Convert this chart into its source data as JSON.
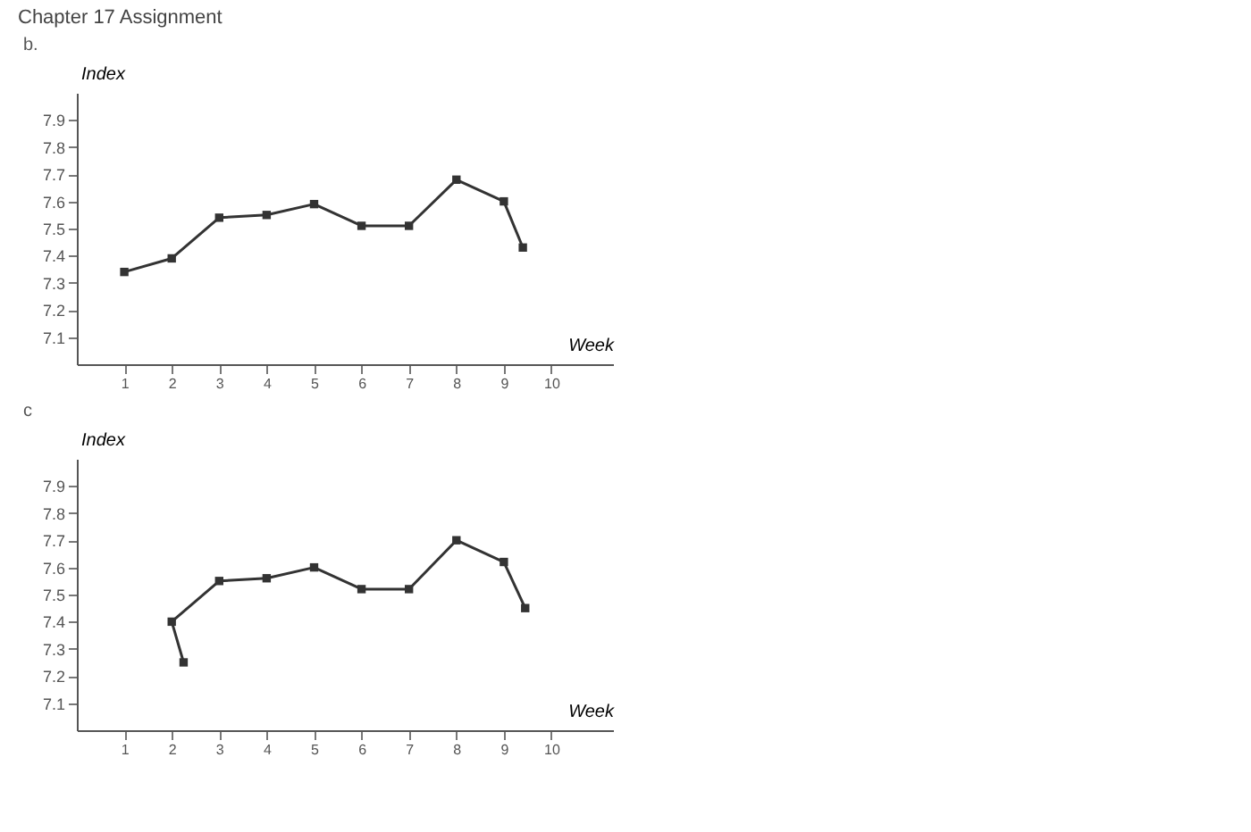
{
  "chart_data": [
    {
      "type": "line",
      "title": "b.",
      "xlabel": "Week",
      "ylabel": "Index",
      "annotations": [
        "Chapter 17 Assignment"
      ],
      "x": [
        1,
        2,
        3,
        4,
        5,
        6,
        7,
        8,
        9,
        9.4
      ],
      "series": [
        {
          "color": "#333333",
          "values": [
            7.34,
            7.39,
            7.54,
            7.55,
            7.59,
            7.51,
            7.51,
            7.68,
            7.6,
            7.43
          ]
        }
      ],
      "xlim": [
        0,
        11.3
      ],
      "xticks": [
        1,
        2,
        3,
        4,
        5,
        6,
        7,
        8,
        9,
        10
      ],
      "ylim": [
        7.0,
        8.0
      ],
      "yticks": [
        7.1,
        7.2,
        7.3,
        7.4,
        7.5,
        7.6,
        7.7,
        7.8,
        7.9
      ],
      "grid": false,
      "marker": "square",
      "line_style": "solid"
    },
    {
      "type": "line",
      "title": "c",
      "xlabel": "Week",
      "ylabel": "Index",
      "x": [
        2.25,
        2,
        3,
        4,
        5,
        6,
        7,
        8,
        9,
        9.45
      ],
      "series": [
        {
          "color": "#333333",
          "values": [
            7.25,
            7.4,
            7.55,
            7.56,
            7.6,
            7.52,
            7.52,
            7.7,
            7.62,
            7.45
          ]
        }
      ],
      "xlim": [
        0,
        11.3
      ],
      "xticks": [
        1,
        2,
        3,
        4,
        5,
        6,
        7,
        8,
        9,
        10
      ],
      "ylim": [
        7.0,
        8.0
      ],
      "yticks": [
        7.1,
        7.2,
        7.3,
        7.4,
        7.5,
        7.6,
        7.7,
        7.8,
        7.9
      ],
      "grid": false,
      "marker": "square",
      "line_style": "solid"
    }
  ]
}
